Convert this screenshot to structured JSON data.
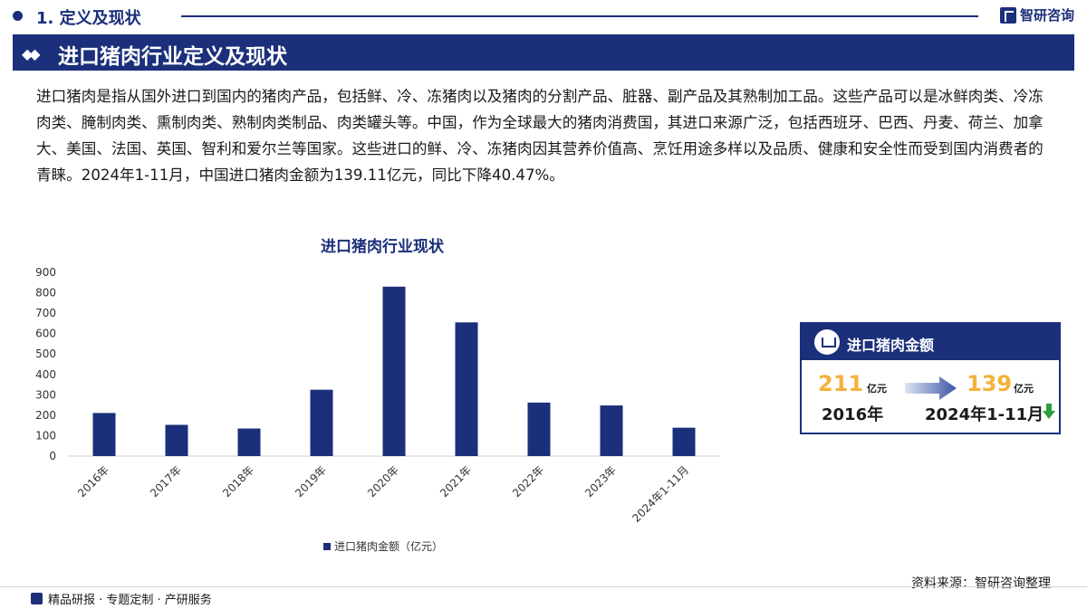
{
  "header": {
    "section_title": "1. 定义及现状",
    "brand_name": "智研咨询",
    "banner_title": "进口猪肉行业定义及现状",
    "banner_marks": "◆◆"
  },
  "intro": {
    "paragraph": "进口猪肉是指从国外进口到国内的猪肉产品，包括鲜、冷、冻猪肉以及猪肉的分割产品、脏器、副产品及其熟制加工品。这些产品可以是冰鲜肉类、冷冻肉类、腌制肉类、熏制肉类、熟制肉类制品、肉类罐头等。中国，作为全球最大的猪肉消费国，其进口来源广泛，包括西班牙、巴西、丹麦、荷兰、加拿大、美国、法国、英国、智利和爱尔兰等国家。这些进口的鲜、冷、冻猪肉因其营养价值高、烹饪用途多样以及品质、健康和安全性而受到国内消费者的青睐。2024年1-11月，中国进口猪肉金额为139.11亿元，同比下降40.47%。"
  },
  "chart_data": {
    "type": "bar",
    "title": "进口猪肉行业现状",
    "categories": [
      "2016年",
      "2017年",
      "2018年",
      "2019年",
      "2020年",
      "2021年",
      "2022年",
      "2023年",
      "2024年1-11月"
    ],
    "series": [
      {
        "name": "进口猪肉金额（亿元）",
        "values": [
          211,
          153,
          135,
          325,
          830,
          655,
          262,
          248,
          139
        ]
      }
    ],
    "ylim": [
      0,
      900
    ],
    "yticks": [
      0,
      100,
      200,
      300,
      400,
      500,
      600,
      700,
      800,
      900
    ],
    "grid": false,
    "legend_position": "bottom",
    "bar_color": "#1b2f7a"
  },
  "card": {
    "title": "进口猪肉金额",
    "left_value": "211",
    "left_unit": "亿元",
    "left_period": "2016年",
    "right_value": "139",
    "right_unit": "亿元",
    "right_period": "2024年1-11月",
    "trend": "down"
  },
  "source": "资料来源：智研咨询整理",
  "footer": "精品研报 · 专题定制 · 产研服务",
  "colors": {
    "primary": "#1b2f7a",
    "accent": "#f3b23a",
    "trend_down": "#2e9e3e"
  }
}
